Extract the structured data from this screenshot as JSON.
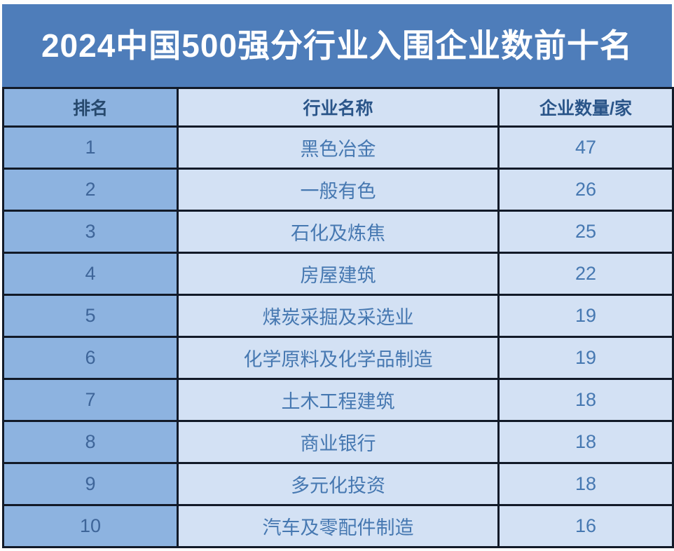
{
  "title": "2024中国500强分行业入围企业数前十名",
  "table": {
    "columns": [
      "排名",
      "行业名称",
      "企业数量/家"
    ],
    "rows": [
      {
        "rank": "1",
        "industry": "黑色冶金",
        "count": "47"
      },
      {
        "rank": "2",
        "industry": "一般有色",
        "count": "26"
      },
      {
        "rank": "3",
        "industry": "石化及炼焦",
        "count": "25"
      },
      {
        "rank": "4",
        "industry": "房屋建筑",
        "count": "22"
      },
      {
        "rank": "5",
        "industry": "煤炭采掘及采选业",
        "count": "19"
      },
      {
        "rank": "6",
        "industry": "化学原料及化学品制造",
        "count": "19"
      },
      {
        "rank": "7",
        "industry": "土木工程建筑",
        "count": "18"
      },
      {
        "rank": "8",
        "industry": "商业银行",
        "count": "18"
      },
      {
        "rank": "9",
        "industry": "多元化投资",
        "count": "18"
      },
      {
        "rank": "10",
        "industry": "汽车及零配件制造",
        "count": "16"
      }
    ]
  },
  "colors": {
    "banner_background": "#4e7dba",
    "title_text": "#ffffff",
    "rank_column_background": "#8db3e0",
    "cell_background": "#d3e1f4",
    "border": "#121a28",
    "header_text": "#2a5589",
    "data_text": "#4678b1"
  },
  "chart_data": {
    "type": "table",
    "title": "2024中国500强分行业入围企业数前十名",
    "columns": [
      "排名",
      "行业名称",
      "企业数量/家"
    ],
    "categories": [
      "黑色冶金",
      "一般有色",
      "石化及炼焦",
      "房屋建筑",
      "煤炭采掘及采选业",
      "化学原料及化学品制造",
      "土木工程建筑",
      "商业银行",
      "多元化投资",
      "汽车及零配件制造"
    ],
    "values": [
      47,
      26,
      25,
      22,
      19,
      19,
      18,
      18,
      18,
      16
    ],
    "ranks": [
      1,
      2,
      3,
      4,
      5,
      6,
      7,
      8,
      9,
      10
    ]
  }
}
